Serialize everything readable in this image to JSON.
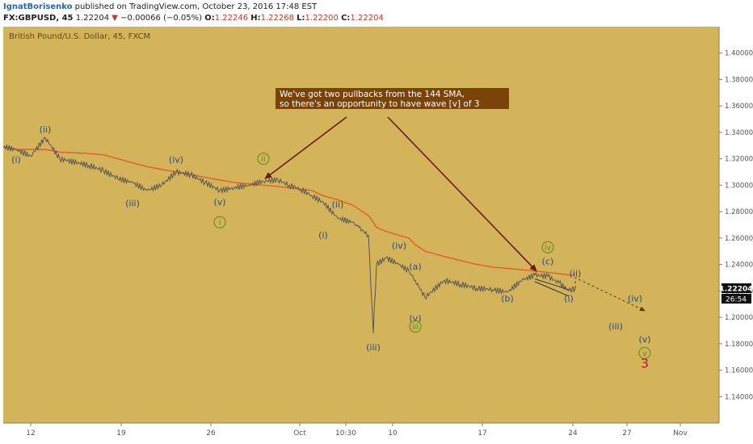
{
  "header": {
    "author": "IgnatBorisenko",
    "published_text": " published on TradingView.com, October 23, 2016 17:48 EST",
    "symbol": "FX:GBPUSD, 45",
    "last": "1.22204",
    "change": "−0.00066 (−0.05%)",
    "open_label": "O:",
    "open": "1.22246",
    "high_label": "H:",
    "high": "1.22268",
    "low_label": "L:",
    "low": "1.22200",
    "close_label": "C:",
    "close": "1.22204"
  },
  "colors": {
    "background": "#d4b45a",
    "price_line": "#555555",
    "sma_line": "#e8542a",
    "arrow": "#6b1a0e",
    "wave_label": "#2c4a7c",
    "circle_label": "#5a8a1a",
    "callout_bg": "#7a4408",
    "callout_text": "#ffffff",
    "wave3": "#b22222"
  },
  "chart_data": {
    "type": "line",
    "title": "British Pound/U.S. Dollar, 45, FXCM",
    "x_tick_labels": [
      "12",
      "19",
      "26",
      "Oct",
      "10:30",
      "10",
      "17",
      "24",
      "27",
      "Nov"
    ],
    "y_tick_labels": [
      "1.14000",
      "1.16000",
      "1.18000",
      "1.20000",
      "1.22000",
      "1.24000",
      "1.26000",
      "1.28000",
      "1.30000",
      "1.32000",
      "1.34000",
      "1.36000",
      "1.38000",
      "1.40000"
    ],
    "ylim": [
      1.12,
      1.42
    ],
    "grid": false,
    "price_x": [
      "Sep 09",
      "Sep 10",
      "Sep 12",
      "Sep 13",
      "Sep 14",
      "Sep 16",
      "Sep 17",
      "Sep 18",
      "Sep 19",
      "Sep 20",
      "Sep 21",
      "Sep 22",
      "Sep 23",
      "Sep 24",
      "Sep 25",
      "Sep 26",
      "Sep 27",
      "Sep 28",
      "Sep 29",
      "Sep 30",
      "Oct 01",
      "Oct 02",
      "Oct 03",
      "Oct 04",
      "Oct 05",
      "Oct 06",
      "Oct 07 (a)",
      "Oct 07 (b)",
      "Oct 07 (c)",
      "Oct 08",
      "Oct 09",
      "Oct 10",
      "Oct 11",
      "Oct 12",
      "Oct 13",
      "Oct 14",
      "Oct 15",
      "Oct 16",
      "Oct 17",
      "Oct 18",
      "Oct 19",
      "Oct 20",
      "Oct 21",
      "Oct 22",
      "Oct 23"
    ],
    "price": [
      1.329,
      1.327,
      1.322,
      1.336,
      1.32,
      1.315,
      1.311,
      1.305,
      1.302,
      1.296,
      1.3,
      1.31,
      1.308,
      1.302,
      1.296,
      1.298,
      1.3,
      1.303,
      1.304,
      1.3,
      1.297,
      1.292,
      1.287,
      1.275,
      1.272,
      1.268,
      1.262,
      1.188,
      1.24,
      1.245,
      1.24,
      1.235,
      1.228,
      1.215,
      1.228,
      1.225,
      1.222,
      1.221,
      1.219,
      1.228,
      1.232,
      1.231,
      1.226,
      1.22,
      1.222
    ],
    "sma_name": "144 SMA",
    "sma": [
      1.329,
      1.327,
      1.327,
      1.327,
      1.325,
      1.324,
      1.323,
      1.32,
      1.317,
      1.314,
      1.312,
      1.31,
      1.308,
      1.306,
      1.304,
      1.302,
      1.301,
      1.3,
      1.299,
      1.298,
      1.297,
      1.296,
      1.292,
      1.289,
      1.285,
      1.282,
      1.277,
      1.272,
      1.268,
      1.265,
      1.262,
      1.26,
      1.255,
      1.25,
      1.246,
      1.243,
      1.24,
      1.238,
      1.237,
      1.236,
      1.235,
      1.234,
      1.233,
      1.232,
      1.232
    ],
    "projection": [
      [
        "Oct 23",
        1.222
      ],
      [
        "Oct 24",
        1.23
      ],
      [
        "Oct 27",
        1.205
      ]
    ],
    "price_tag": "1.22204",
    "time_tag": "26:54",
    "callout": {
      "line1": "We've got two pullbacks from the 144 SMA,",
      "line2": "so there's an opportunity to have wave [v] of 3"
    },
    "wave_labels": [
      {
        "text": "(i)",
        "x": "Sep 10",
        "y": 1.317
      },
      {
        "text": "(ii)",
        "x": "Sep 13",
        "y": 1.34
      },
      {
        "text": "(iii)",
        "x": "Sep 19",
        "y": 1.284
      },
      {
        "text": "(iv)",
        "x": "Sep 22",
        "y": 1.317
      },
      {
        "text": "(v)",
        "x": "Sep 25",
        "y": 1.285
      },
      {
        "text": "(ii)",
        "x": "Oct 04",
        "y": 1.283
      },
      {
        "text": "(i)",
        "x": "Oct 03",
        "y": 1.26
      },
      {
        "text": "(iv)",
        "x": "Oct 09",
        "y": 1.252
      },
      {
        "text": "(iii)",
        "x": "Oct 07 (b)",
        "y": 1.175
      },
      {
        "text": "(a)",
        "x": "Oct 11",
        "y": 1.236
      },
      {
        "text": "(v)",
        "x": "Oct 11",
        "y": 1.197
      },
      {
        "text": "(b)",
        "x": "Oct 17",
        "y": 1.212
      },
      {
        "text": "(c)",
        "x": "Oct 20",
        "y": 1.24
      },
      {
        "text": "(i)",
        "x": "Oct 22",
        "y": 1.212
      },
      {
        "text": "(ii)",
        "x": "Oct 24",
        "y": 1.231
      },
      {
        "text": "(iv)",
        "x": "Oct 26",
        "y": 1.212
      },
      {
        "text": "(iii)",
        "x": "Oct 25",
        "y": 1.191
      },
      {
        "text": "(v)",
        "x": "Oct 27",
        "y": 1.181
      }
    ],
    "circle_labels": [
      {
        "text": "ii",
        "x": "Sep 28",
        "y": 1.32
      },
      {
        "text": "i",
        "x": "Sep 25",
        "y": 1.272
      },
      {
        "text": "iv",
        "x": "Oct 20",
        "y": 1.253
      },
      {
        "text": "iii",
        "x": "Oct 11",
        "y": 1.193
      },
      {
        "text": "v",
        "x": "Oct 27",
        "y": 1.173
      }
    ],
    "wave3_label": {
      "text": "3",
      "x": "Oct 27",
      "y": 1.162
    }
  }
}
